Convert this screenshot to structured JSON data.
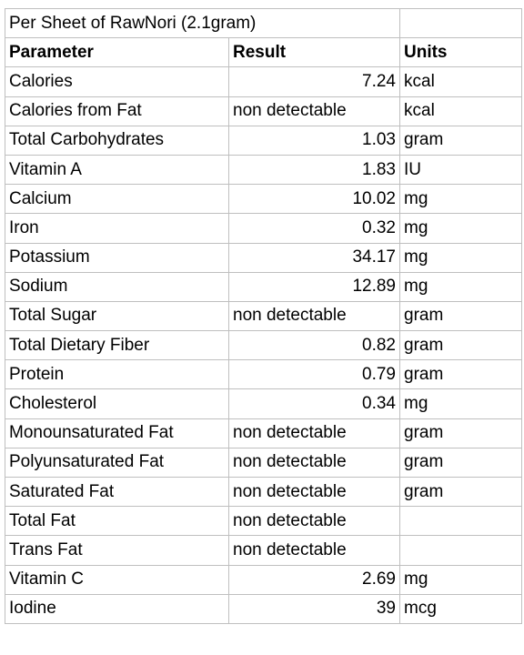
{
  "title": "Per Sheet of RawNori (2.1gram)",
  "headers": {
    "parameter": "Parameter",
    "result": "Result",
    "units": "Units"
  },
  "rows": [
    {
      "parameter": "Calories",
      "result": "7.24",
      "units": "kcal",
      "numeric": true
    },
    {
      "parameter": "Calories from Fat",
      "result": "non detectable",
      "units": "kcal",
      "numeric": false
    },
    {
      "parameter": "Total Carbohydrates",
      "result": "1.03",
      "units": "gram",
      "numeric": true
    },
    {
      "parameter": "Vitamin A",
      "result": "1.83",
      "units": "IU",
      "numeric": true
    },
    {
      "parameter": "Calcium",
      "result": "10.02",
      "units": "mg",
      "numeric": true
    },
    {
      "parameter": "Iron",
      "result": "0.32",
      "units": "mg",
      "numeric": true
    },
    {
      "parameter": "Potassium",
      "result": "34.17",
      "units": "mg",
      "numeric": true
    },
    {
      "parameter": "Sodium",
      "result": "12.89",
      "units": "mg",
      "numeric": true
    },
    {
      "parameter": "Total Sugar",
      "result": "non detectable",
      "units": "gram",
      "numeric": false
    },
    {
      "parameter": "Total Dietary Fiber",
      "result": "0.82",
      "units": "gram",
      "numeric": true
    },
    {
      "parameter": "Protein",
      "result": "0.79",
      "units": "gram",
      "numeric": true
    },
    {
      "parameter": "Cholesterol",
      "result": "0.34",
      "units": "mg",
      "numeric": true
    },
    {
      "parameter": "Monounsaturated Fat",
      "result": "non detectable",
      "units": "gram",
      "numeric": false
    },
    {
      "parameter": "Polyunsaturated Fat",
      "result": "non detectable",
      "units": "gram",
      "numeric": false
    },
    {
      "parameter": "Saturated Fat",
      "result": "non detectable",
      "units": "gram",
      "numeric": false
    },
    {
      "parameter": "Total Fat",
      "result": "non detectable",
      "units": "",
      "numeric": false
    },
    {
      "parameter": "Trans Fat",
      "result": "non detectable",
      "units": "",
      "numeric": false
    },
    {
      "parameter": "Vitamin C",
      "result": "2.69",
      "units": "mg",
      "numeric": true
    },
    {
      "parameter": "Iodine",
      "result": "39",
      "units": "mcg",
      "numeric": true
    }
  ]
}
